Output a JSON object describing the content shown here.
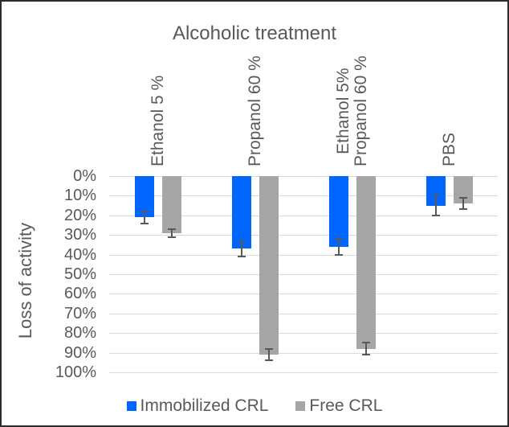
{
  "chart_data": {
    "type": "bar",
    "title": "Alcoholic treatment",
    "ylabel": "Loss of activity",
    "orientation": "vertical-hanging",
    "categories": [
      "Ethanol 5 %",
      "Propanol 60 %",
      "Ethanol 5%\nPropanol 60 %",
      "PBS"
    ],
    "series": [
      {
        "name": "Immobilized CRL",
        "color": "#0066ff",
        "values": [
          21,
          37,
          36,
          15
        ],
        "errors": [
          3,
          4,
          4,
          5
        ]
      },
      {
        "name": "Free CRL",
        "color": "#a6a6a6",
        "values": [
          29,
          91,
          88,
          14
        ],
        "errors": [
          2,
          3,
          3,
          3
        ]
      }
    ],
    "y_axis": {
      "unit": "%",
      "min": 0,
      "max": 100,
      "direction": "inverted",
      "tick_values": [
        0,
        10,
        20,
        30,
        40,
        50,
        60,
        70,
        80,
        90,
        100
      ],
      "tick_labels": [
        "0%",
        "10%",
        "20%",
        "30%",
        "40%",
        "50%",
        "60%",
        "70%",
        "80%",
        "90%",
        "100%"
      ]
    },
    "grid": true,
    "legend_position": "bottom",
    "colors": {
      "gridline": "#d9d9d9",
      "text": "#595959",
      "error_bar": "#595959",
      "background": "#ffffff",
      "frame_border": "#2b2b2b"
    }
  }
}
